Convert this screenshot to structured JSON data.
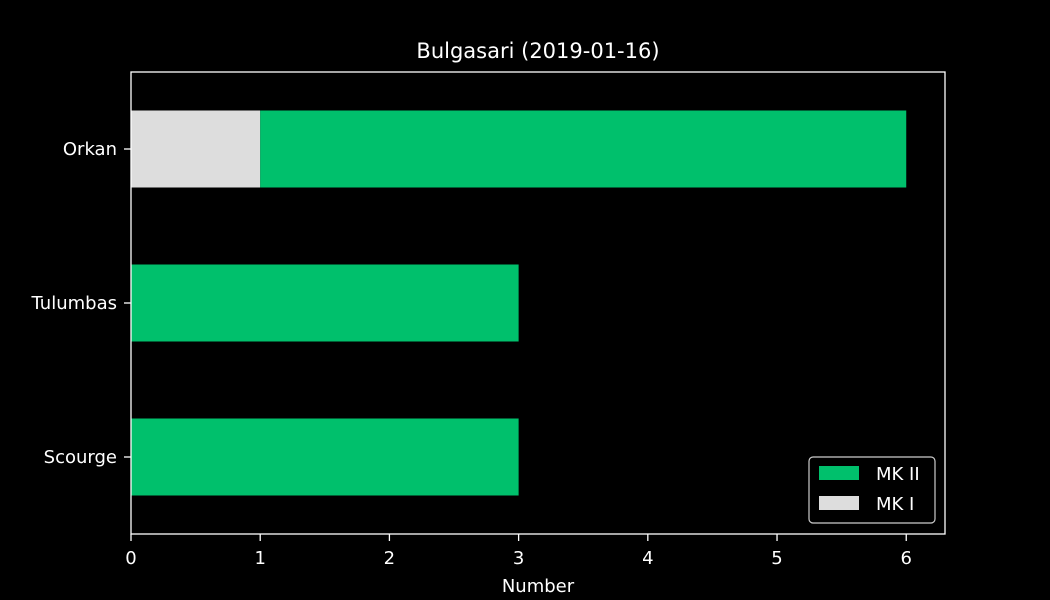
{
  "chart_data": {
    "type": "bar",
    "orientation": "horizontal",
    "stacked": true,
    "title": "Bulgasari (2019-01-16)",
    "xlabel": "Number",
    "ylabel": "",
    "categories": [
      "Orkan",
      "Tulumbas",
      "Scourge"
    ],
    "xlim": [
      0,
      6.3
    ],
    "xticks": [
      "0",
      "1",
      "2",
      "3",
      "4",
      "5",
      "6"
    ],
    "series": [
      {
        "name": "MK I",
        "values": [
          1,
          0,
          0
        ],
        "color": "#dddddd"
      },
      {
        "name": "MK II",
        "values": [
          5,
          3,
          3
        ],
        "color": "#00c06c"
      }
    ],
    "legend": {
      "placement": "bottom-right",
      "entries": [
        {
          "label": "MK II",
          "color": "#00c06c"
        },
        {
          "label": "MK I",
          "color": "#dddddd"
        }
      ]
    },
    "grid": false,
    "background": "#000000",
    "foreground": "#ffffff"
  }
}
